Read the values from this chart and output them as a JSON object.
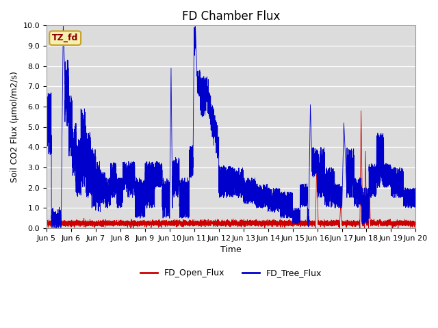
{
  "title": "FD Chamber Flux",
  "xlabel": "Time",
  "ylabel": "Soil CO2 Flux (μmol/m2/s)",
  "ylim": [
    0,
    10.0
  ],
  "yticks": [
    0.0,
    1.0,
    2.0,
    3.0,
    4.0,
    5.0,
    6.0,
    7.0,
    8.0,
    9.0,
    10.0
  ],
  "annotation_text": "TZ_fd",
  "bg_color": "#dcdcdc",
  "line1_color": "#cc0000",
  "line2_color": "#0000cc",
  "legend_labels": [
    "FD_Open_Flux",
    "FD_Tree_Flux"
  ],
  "xtick_labels": [
    "Jun 5",
    "Jun 6",
    "Jun 7",
    "Jun 8",
    "Jun 9",
    "Jun 10",
    "Jun 11",
    "Jun 12",
    "Jun 13",
    "Jun 14",
    "Jun 15",
    "Jun 16",
    "Jun 17",
    "Jun 18",
    "Jun 19",
    "Jun 20"
  ],
  "num_points": 7200,
  "start_day": 5.0,
  "end_day": 20.0,
  "title_fontsize": 12,
  "axis_fontsize": 9,
  "tick_fontsize": 8,
  "legend_fontsize": 9
}
